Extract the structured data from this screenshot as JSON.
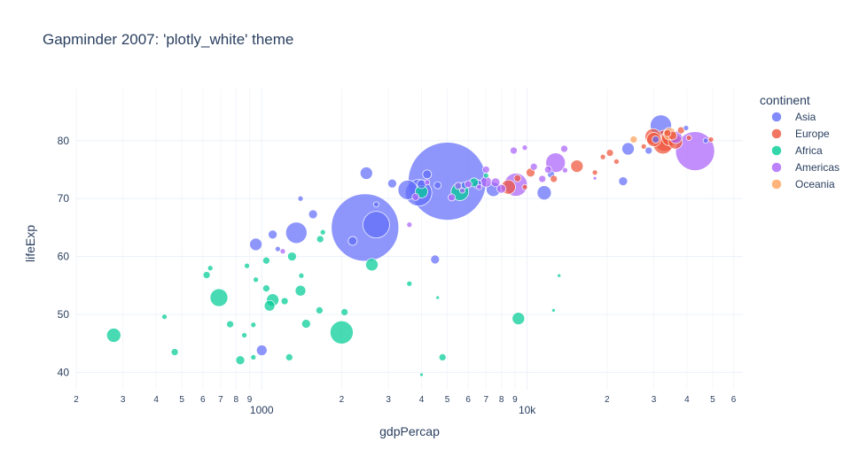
{
  "chart_data": {
    "type": "scatter",
    "title": "Gapminder 2007: 'plotly_white' theme",
    "xlabel": "gdpPercap",
    "ylabel": "lifeExp",
    "x_scale": "log",
    "xlim": [
      200,
      65000
    ],
    "ylim": [
      37,
      89
    ],
    "x_major_ticks": [
      {
        "value": 1000,
        "label": "1000"
      },
      {
        "value": 10000,
        "label": "10k"
      }
    ],
    "x_minor_ticks": [
      {
        "value": 200,
        "label": "2"
      },
      {
        "value": 300,
        "label": "3"
      },
      {
        "value": 400,
        "label": "4"
      },
      {
        "value": 500,
        "label": "5"
      },
      {
        "value": 600,
        "label": "6"
      },
      {
        "value": 700,
        "label": "7"
      },
      {
        "value": 800,
        "label": "8"
      },
      {
        "value": 900,
        "label": "9"
      },
      {
        "value": 2000,
        "label": "2"
      },
      {
        "value": 3000,
        "label": "3"
      },
      {
        "value": 4000,
        "label": "4"
      },
      {
        "value": 5000,
        "label": "5"
      },
      {
        "value": 6000,
        "label": "6"
      },
      {
        "value": 7000,
        "label": "7"
      },
      {
        "value": 8000,
        "label": "8"
      },
      {
        "value": 9000,
        "label": "9"
      },
      {
        "value": 20000,
        "label": "2"
      },
      {
        "value": 30000,
        "label": "3"
      },
      {
        "value": 40000,
        "label": "4"
      },
      {
        "value": 50000,
        "label": "5"
      },
      {
        "value": 60000,
        "label": "6"
      }
    ],
    "y_ticks": [
      40,
      50,
      60,
      70,
      80
    ],
    "size_encoding": "population",
    "grid": true,
    "legend": {
      "title": "continent",
      "position": "right"
    },
    "series": [
      {
        "name": "Asia",
        "color": "#636efa",
        "points": [
          [
            2480,
            74.4,
            7
          ],
          [
            3550,
            71.5,
            11
          ],
          [
            3900,
            71.0,
            15
          ],
          [
            2450,
            65.0,
            38
          ],
          [
            5000,
            73.0,
            44
          ],
          [
            2700,
            65.5,
            15
          ],
          [
            3100,
            72.6,
            5
          ],
          [
            4000,
            72.5,
            5
          ],
          [
            4200,
            74.2,
            5
          ],
          [
            4600,
            72.3,
            4
          ],
          [
            1350,
            64.1,
            12
          ],
          [
            950,
            62.1,
            7
          ],
          [
            1100,
            63.8,
            5
          ],
          [
            2200,
            62.7,
            5
          ],
          [
            1560,
            67.3,
            5
          ],
          [
            4500,
            59.5,
            5
          ],
          [
            7460,
            71.6,
            8
          ],
          [
            5800,
            72.3,
            4
          ],
          [
            6500,
            72.5,
            5
          ],
          [
            11600,
            71.0,
            8
          ],
          [
            12300,
            74.2,
            4
          ],
          [
            23000,
            73.0,
            5
          ],
          [
            24000,
            78.6,
            7
          ],
          [
            28700,
            78.3,
            4
          ],
          [
            31900,
            82.6,
            12
          ],
          [
            30500,
            80.2,
            4
          ],
          [
            39700,
            82.2,
            3
          ],
          [
            47100,
            80.0,
            3
          ],
          [
            1000,
            43.8,
            6
          ],
          [
            2700,
            69.0,
            3
          ],
          [
            1150,
            61.3,
            3
          ],
          [
            1400,
            70.0,
            3
          ]
        ]
      },
      {
        "name": "Europe",
        "color": "#ef553b",
        "points": [
          [
            8500,
            72.0,
            8
          ],
          [
            9200,
            73.5,
            4
          ],
          [
            10300,
            74.5,
            5
          ],
          [
            15400,
            75.6,
            7
          ],
          [
            18000,
            74.5,
            3
          ],
          [
            20500,
            77.9,
            4
          ],
          [
            21700,
            76.4,
            3
          ],
          [
            30000,
            80.2,
            8
          ],
          [
            33000,
            80.0,
            12
          ],
          [
            32500,
            79.4,
            11
          ],
          [
            34500,
            80.5,
            9
          ],
          [
            36200,
            79.8,
            8
          ],
          [
            29800,
            80.7,
            9
          ],
          [
            38000,
            81.8,
            4
          ],
          [
            35300,
            80.9,
            5
          ],
          [
            49300,
            80.2,
            3
          ],
          [
            12600,
            73.4,
            4
          ],
          [
            9800,
            72.0,
            3
          ],
          [
            27500,
            79.0,
            3
          ],
          [
            40700,
            80.5,
            3
          ],
          [
            33800,
            81.3,
            4
          ],
          [
            19300,
            77.2,
            3
          ]
        ]
      },
      {
        "name": "Africa",
        "color": "#00cc96",
        "points": [
          [
            277,
            46.4,
            8
          ],
          [
            430,
            49.6,
            3
          ],
          [
            470,
            43.5,
            4
          ],
          [
            620,
            56.8,
            4
          ],
          [
            640,
            58.0,
            3
          ],
          [
            690,
            52.9,
            10
          ],
          [
            760,
            48.3,
            4
          ],
          [
            830,
            42.1,
            5
          ],
          [
            860,
            46.4,
            3
          ],
          [
            880,
            58.4,
            3
          ],
          [
            930,
            48.2,
            3
          ],
          [
            950,
            56.0,
            3
          ],
          [
            1040,
            54.5,
            4
          ],
          [
            1070,
            51.5,
            6
          ],
          [
            1100,
            52.5,
            7
          ],
          [
            1220,
            52.3,
            4
          ],
          [
            1270,
            42.6,
            4
          ],
          [
            1300,
            60.0,
            5
          ],
          [
            1400,
            54.1,
            6
          ],
          [
            1410,
            56.7,
            3
          ],
          [
            1470,
            48.4,
            5
          ],
          [
            1650,
            50.7,
            4
          ],
          [
            1660,
            63.0,
            4
          ],
          [
            1700,
            64.2,
            3
          ],
          [
            2000,
            46.9,
            13
          ],
          [
            2050,
            50.4,
            4
          ],
          [
            2600,
            58.6,
            7
          ],
          [
            3600,
            55.3,
            3
          ],
          [
            4800,
            42.6,
            4
          ],
          [
            5580,
            71.2,
            10
          ],
          [
            6300,
            72.8,
            5
          ],
          [
            9270,
            49.3,
            7
          ],
          [
            13200,
            56.7,
            2
          ],
          [
            12570,
            50.7,
            2
          ],
          [
            7000,
            74.0,
            3
          ],
          [
            4600,
            52.9,
            2
          ],
          [
            1040,
            59.3,
            4
          ],
          [
            4000,
            71.2,
            7
          ],
          [
            4000,
            39.6,
            2
          ],
          [
            930,
            42.6,
            3
          ]
        ]
      },
      {
        "name": "Americas",
        "color": "#ab63fa",
        "points": [
          [
            42950,
            78.2,
            22
          ],
          [
            9070,
            72.4,
            13
          ],
          [
            12800,
            76.2,
            11
          ],
          [
            11400,
            73.4,
            4
          ],
          [
            7000,
            72.9,
            6
          ],
          [
            7600,
            72.8,
            5
          ],
          [
            6000,
            72.5,
            4
          ],
          [
            12000,
            75.0,
            4
          ],
          [
            10600,
            75.5,
            4
          ],
          [
            13800,
            78.6,
            4
          ],
          [
            5700,
            71.4,
            3
          ],
          [
            8900,
            78.3,
            4
          ],
          [
            9800,
            78.8,
            3
          ],
          [
            3800,
            70.3,
            4
          ],
          [
            5200,
            70.2,
            4
          ],
          [
            36300,
            80.6,
            7
          ],
          [
            7000,
            75.0,
            4
          ],
          [
            8000,
            71.7,
            5
          ],
          [
            3600,
            65.5,
            3
          ],
          [
            1200,
            60.9,
            3
          ],
          [
            13900,
            74.9,
            3
          ],
          [
            18000,
            73.5,
            2
          ],
          [
            6600,
            72.0,
            3
          ],
          [
            4200,
            72.8,
            3
          ],
          [
            5500,
            72.2,
            4
          ]
        ]
      },
      {
        "name": "Oceania",
        "color": "#ffa15a",
        "points": [
          [
            34400,
            81.2,
            7
          ],
          [
            25200,
            80.2,
            4
          ]
        ]
      }
    ]
  }
}
